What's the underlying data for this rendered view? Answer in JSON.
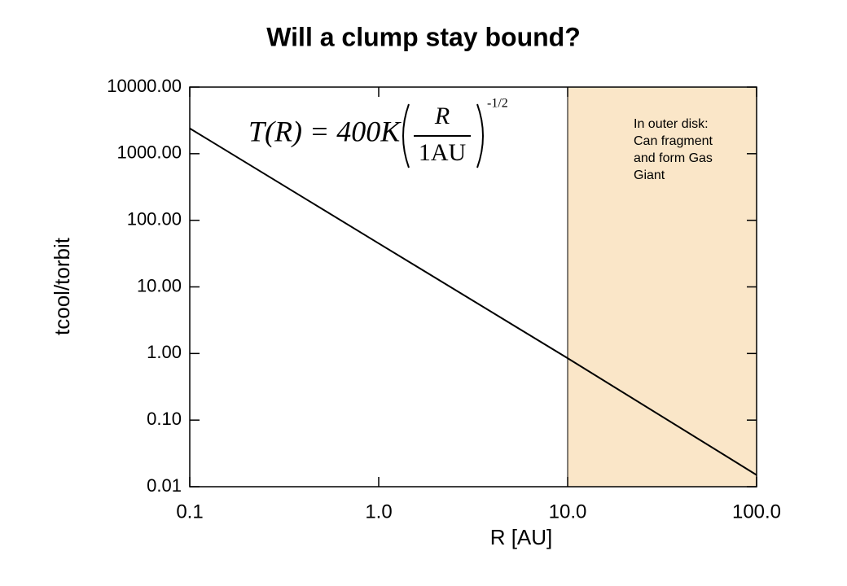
{
  "chart_data": {
    "type": "line",
    "title": "Will a clump stay bound?",
    "x_label": "R [AU]",
    "y_label": "tcool/torbit",
    "x": [
      0.1,
      1,
      10,
      100
    ],
    "series": [
      {
        "name": "tcool/torbit",
        "color": "#000000",
        "values": [
          2400,
          45,
          0.85,
          0.015
        ]
      }
    ],
    "xlim": [
      0.1,
      100
    ],
    "ylim": [
      0.01,
      10000
    ],
    "xscale": "log",
    "yscale": "log",
    "xticks": [
      0.1,
      {
        "value": 1,
        "label": "1.0"
      },
      {
        "value": 10,
        "label": "10.0"
      },
      {
        "value": 100,
        "label": "100.0"
      }
    ],
    "yticks": [
      {
        "value": 0.01,
        "label": "0.01"
      },
      {
        "value": 0.1,
        "label": "0.10"
      },
      {
        "value": 1,
        "label": "1.00"
      },
      {
        "value": 10,
        "label": "10.00"
      },
      {
        "value": 100,
        "label": "100.00"
      },
      {
        "value": 1000,
        "label": "1000.00"
      },
      {
        "value": 10000,
        "label": "10000.00"
      }
    ],
    "shaded_region": {
      "xrange": [
        10,
        100
      ],
      "color": "#fae6c8"
    },
    "annotation": "In outer disk: Can fragment and form Gas Giant",
    "equation": {
      "lhs": "T(R) = 400K",
      "numerator": "R",
      "denominator": "1AU",
      "exponent": "-1/2"
    }
  }
}
